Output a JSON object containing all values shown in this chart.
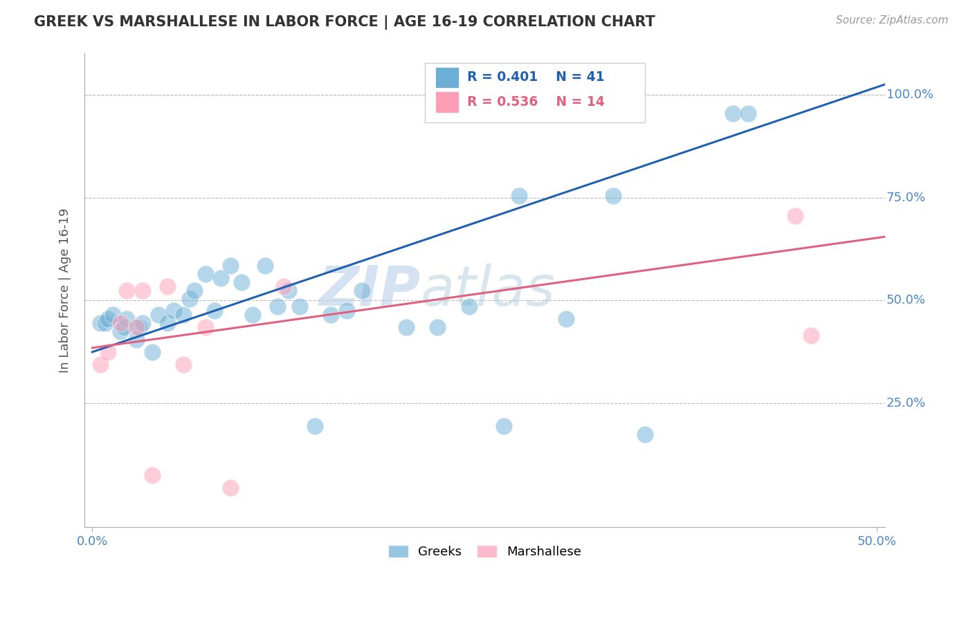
{
  "title": "GREEK VS MARSHALLESE IN LABOR FORCE | AGE 16-19 CORRELATION CHART",
  "source": "Source: ZipAtlas.com",
  "ylabel_label": "In Labor Force | Age 16-19",
  "xlim": [
    -0.005,
    0.505
  ],
  "ylim": [
    -0.05,
    1.1
  ],
  "xticks": [
    0.0,
    0.5
  ],
  "xticklabels": [
    "0.0%",
    "50.0%"
  ],
  "yticks": [
    0.25,
    0.5,
    0.75,
    1.0
  ],
  "yticklabels": [
    "25.0%",
    "50.0%",
    "75.0%",
    "100.0%"
  ],
  "greek_color": "#6baed6",
  "marshallese_color": "#fc9eb5",
  "greek_line_color": "#2060b0",
  "marshallese_line_color": "#e06080",
  "watermark_zip": "ZIP",
  "watermark_atlas": "atlas",
  "legend_r_greek": "R = 0.401",
  "legend_n_greek": "N = 41",
  "legend_r_marsh": "R = 0.536",
  "legend_n_marsh": "N = 14",
  "greek_scatter_x": [
    0.005,
    0.008,
    0.01,
    0.013,
    0.018,
    0.02,
    0.022,
    0.028,
    0.03,
    0.032,
    0.038,
    0.042,
    0.048,
    0.052,
    0.058,
    0.062,
    0.065,
    0.072,
    0.078,
    0.082,
    0.088,
    0.095,
    0.102,
    0.11,
    0.118,
    0.125,
    0.132,
    0.142,
    0.152,
    0.162,
    0.172,
    0.2,
    0.22,
    0.24,
    0.262,
    0.272,
    0.302,
    0.332,
    0.352,
    0.408,
    0.418
  ],
  "greek_scatter_y": [
    0.445,
    0.445,
    0.455,
    0.465,
    0.425,
    0.435,
    0.455,
    0.405,
    0.435,
    0.445,
    0.375,
    0.465,
    0.445,
    0.475,
    0.465,
    0.505,
    0.525,
    0.565,
    0.475,
    0.555,
    0.585,
    0.545,
    0.465,
    0.585,
    0.485,
    0.525,
    0.485,
    0.195,
    0.465,
    0.475,
    0.525,
    0.435,
    0.435,
    0.485,
    0.195,
    0.755,
    0.455,
    0.755,
    0.175,
    0.955,
    0.955
  ],
  "marsh_scatter_x": [
    0.005,
    0.01,
    0.018,
    0.022,
    0.028,
    0.032,
    0.038,
    0.048,
    0.058,
    0.072,
    0.088,
    0.122,
    0.448,
    0.458
  ],
  "marsh_scatter_y": [
    0.345,
    0.375,
    0.445,
    0.525,
    0.435,
    0.525,
    0.075,
    0.535,
    0.345,
    0.435,
    0.045,
    0.535,
    0.705,
    0.415
  ],
  "greek_line_x": [
    0.0,
    0.505
  ],
  "greek_line_y": [
    0.375,
    1.025
  ],
  "marsh_line_x": [
    0.0,
    0.505
  ],
  "marsh_line_y": [
    0.385,
    0.655
  ],
  "bg_color": "#ffffff",
  "grid_color": "#bbbbbb"
}
